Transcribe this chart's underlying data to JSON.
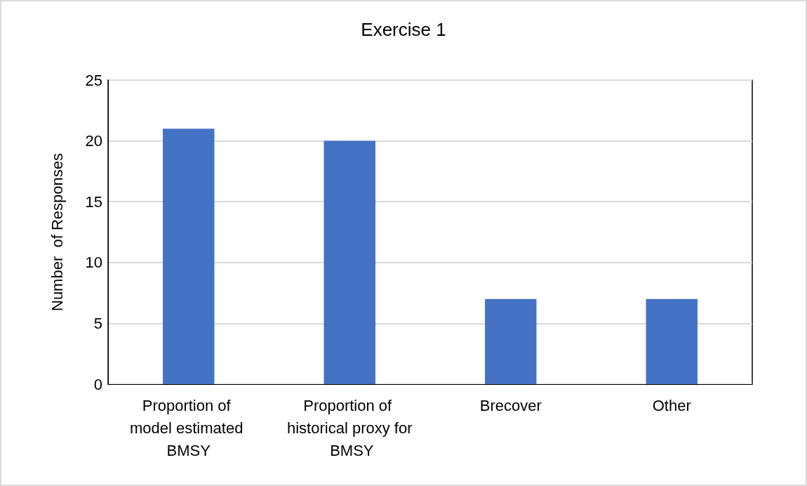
{
  "chart_data": {
    "type": "bar",
    "title": "Exercise 1",
    "ylabel": "Number  of Responses",
    "categories": [
      "Proportion of model estimated BMSY",
      "Proportion of historical proxy for BMSY",
      "Brecover",
      "Other"
    ],
    "values": [
      21,
      20,
      7,
      7
    ],
    "color": "#4472c4",
    "ylim": [
      0,
      25
    ],
    "yticks": [
      0,
      5,
      10,
      15,
      20,
      25
    ],
    "grid": "y"
  }
}
